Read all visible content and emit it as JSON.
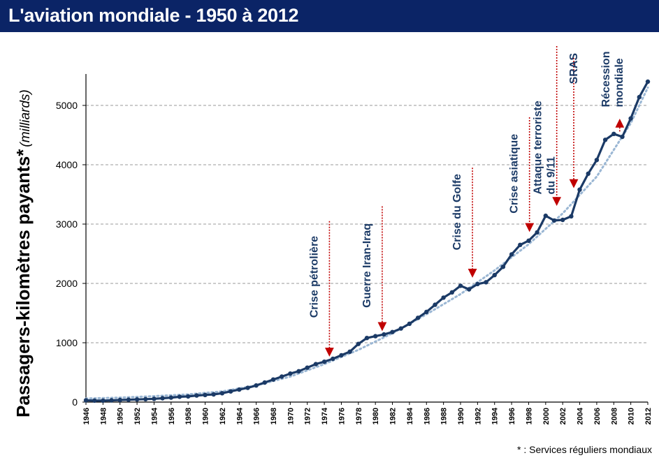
{
  "title": "L'aviation mondiale - 1950 à 2012",
  "footnote": "* : Services réguliers mondiaux",
  "colors": {
    "title_bg": "#0b2466",
    "series": "#1b3a66",
    "trend": "#9bb7d4",
    "annotation_arrow": "#c00000",
    "annotation_text": "#1b3a66"
  },
  "chart_data": {
    "type": "line",
    "ylabel_main": "Passagers-kilomètres payants*",
    "ylabel_unit": "(milliards)",
    "xlabel": "",
    "ylim": [
      0,
      5500
    ],
    "yticks": [
      0,
      1000,
      2000,
      3000,
      4000,
      5000
    ],
    "xlim": [
      1946,
      2012
    ],
    "xticks": [
      "1946",
      "1948",
      "1950",
      "1952",
      "1954",
      "1956",
      "1958",
      "1960",
      "1962",
      "1964",
      "1966",
      "1968",
      "1970",
      "1972",
      "1974",
      "1976",
      "1978",
      "1980",
      "1982",
      "1984",
      "1986",
      "1988",
      "1990",
      "1992",
      "1994",
      "1996",
      "1998",
      "2000",
      "2002",
      "2004",
      "2006",
      "2008",
      "2010",
      "2012"
    ],
    "grid": "horizontal dashed",
    "series": [
      {
        "name": "Passagers-kilomètres payants",
        "x": [
          1946,
          1947,
          1948,
          1949,
          1950,
          1951,
          1952,
          1953,
          1954,
          1955,
          1956,
          1957,
          1958,
          1959,
          1960,
          1961,
          1962,
          1963,
          1964,
          1965,
          1966,
          1967,
          1968,
          1969,
          1970,
          1971,
          1972,
          1973,
          1974,
          1975,
          1976,
          1977,
          1978,
          1979,
          1980,
          1981,
          1982,
          1983,
          1984,
          1985,
          1986,
          1987,
          1988,
          1989,
          1990,
          1991,
          1992,
          1993,
          1994,
          1995,
          1996,
          1997,
          1998,
          1999,
          2000,
          2001,
          2002,
          2003,
          2004,
          2005,
          2006,
          2007,
          2008,
          2009,
          2010,
          2011,
          2012
        ],
        "values": [
          30,
          25,
          25,
          30,
          35,
          40,
          45,
          50,
          55,
          65,
          75,
          90,
          95,
          110,
          120,
          130,
          150,
          180,
          210,
          240,
          280,
          330,
          380,
          430,
          480,
          520,
          580,
          640,
          680,
          730,
          790,
          850,
          980,
          1080,
          1110,
          1140,
          1180,
          1240,
          1320,
          1420,
          1520,
          1640,
          1760,
          1850,
          1960,
          1900,
          1990,
          2020,
          2140,
          2280,
          2490,
          2650,
          2720,
          2860,
          3140,
          3060,
          3070,
          3130,
          3580,
          3850,
          4080,
          4420,
          4520,
          4470,
          4780,
          5140,
          5400
        ]
      },
      {
        "name": "Tendance",
        "style": "dotted",
        "x": [
          1946,
          1950,
          1954,
          1958,
          1962,
          1966,
          1970,
          1974,
          1978,
          1982,
          1986,
          1990,
          1994,
          1998,
          2002,
          2006,
          2010,
          2012
        ],
        "values": [
          60,
          75,
          100,
          130,
          180,
          280,
          430,
          640,
          880,
          1160,
          1480,
          1820,
          2220,
          2660,
          3180,
          3800,
          4700,
          5300
        ]
      }
    ],
    "annotations": [
      {
        "label": "Crise pétrolière",
        "year": 1974.6,
        "value": 700,
        "text_x": 1973.2,
        "top": 3050
      },
      {
        "label": "Guerre Iran-Iraq",
        "year": 1980.8,
        "value": 1130,
        "text_x": 1979.4,
        "top": 3300
      },
      {
        "label": "Crise du Golfe",
        "year": 1991.4,
        "value": 2030,
        "text_x": 1990.0,
        "top": 3950
      },
      {
        "label": "Crise asiatique",
        "year": 1998.1,
        "value": 2800,
        "text_x": 1996.7,
        "top": 4800
      },
      {
        "label": "Attaque terroriste\ndu 9/11",
        "year": 2001.3,
        "value": 3240,
        "text_x": 1999.5,
        "top": 6000
      },
      {
        "label": "SRAS",
        "year": 2003.3,
        "value": 3540,
        "text_x": 2003.7,
        "top": 5800
      },
      {
        "label": "Récession\nmondiale",
        "year": 2008.7,
        "value": 4560,
        "text_x": 2007.5,
        "top": 4560
      }
    ]
  }
}
